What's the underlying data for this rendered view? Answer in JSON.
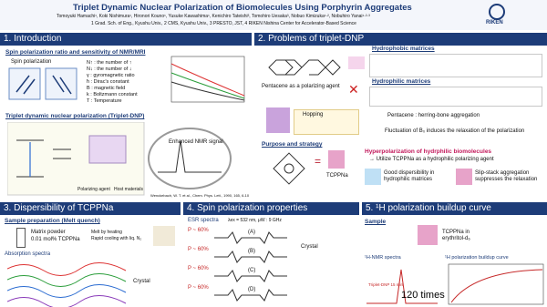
{
  "header": {
    "title": "Triplet Dynamic Nuclear Polarization of Biomolecules Using Porphyrin Aggregates",
    "authors": "Tomoyuki Hamachi¹, Koki Nishimura¹, Hironori Kouno¹, Yusuke Kawashima¹, Kenichiro Tateishi³, Tomohiro Uesaka³, Nobuo Kimizuka¹·², Nobuhiro Yanai¹·²·³",
    "affiliations": "1 Grad. Sch. of Eng., Kyushu Univ., 2 CMS, Kyushu Univ., 3 PRESTO, JST, 4 RIKEN Nishina Center for Accelerator-Based Science",
    "logo": "RIKEN"
  },
  "intro": {
    "heading": "1. Introduction",
    "subtitle": "Spin polarization ratio and sensitivity of NMR/MRI",
    "spin": "Spin polarization",
    "defs": [
      "N↑ : the number of ↑",
      "N↓ : the number of ↓",
      "γ : gyromagnetic ratio",
      "ħ : Dirac's constant",
      "B : magnetic field",
      "k : Boltzmann constant",
      "T : Temperature"
    ],
    "dnp": "Triplet dynamic nuclear polarization (Triplet-DNP)",
    "enhanced": "Enhanced NMR signal",
    "agent": "Polarizing agent",
    "host": "Host materials",
    "ref": "Wenckebach, W. T. et al., Chem. Phys. Lett., 1990, 165, 6-10"
  },
  "problems": {
    "heading": "2. Problems of triplet-DNP",
    "hydrophobic": "Hydrophobic matrices",
    "pentacene": "Pentacene as a polarizing agent",
    "hydrophilic": "Hydrophilic matrices",
    "hopping": "Hopping",
    "aggregation": "Pentacene : herring-bone aggregation",
    "fluctuation": "Fluctuation of B₀ induces the relaxation of the polarization",
    "purpose": "Purpose and strategy",
    "goal": "Hyperpolarization of hydrphilic biomolecules",
    "utilize": "→ Utilize TCPPNa as a hydrophilic polarizing agent",
    "tcppna": "TCPPNa",
    "good": "Good dispersibility in hydrophilic matrices",
    "slip": "Slip-stack aggregation suppresses the relaxation"
  },
  "dispersibility": {
    "heading": "3. Dispersibility of TCPPNa",
    "prep": "Sample preparation (Melt quench)",
    "matrix": "Matrix powder",
    "conc": "0.01 mol% TCPPNa",
    "melt": "Melt by heating",
    "cool": "Rapid cooling with liq. N₂",
    "absorption": "Absorption spectra",
    "crystal": "Crystal"
  },
  "spin": {
    "heading": "4. Spin polarization properties",
    "esr": "ESR spectra",
    "cond": "λex = 532 nm, μW : 9 GHz",
    "rows": [
      {
        "p": "P ~ 60%",
        "label": "(A)"
      },
      {
        "p": "P ~ 60%",
        "label": "(B)"
      },
      {
        "p": "P ~ 60%",
        "label": "(C)"
      },
      {
        "p": "P ~ 60%",
        "label": "(D)"
      }
    ],
    "crystal": "Crystal"
  },
  "buildup": {
    "heading": "5. ¹H polarization buildup curve",
    "sample": "Sample",
    "tcppna": "TCPPNa in erythritol-d₆",
    "nmr": "¹H-NMR spectra",
    "curve": "¹H polarization buildup curve",
    "dnp": "Triplet-DNP 15 min",
    "times": "120 times"
  }
}
